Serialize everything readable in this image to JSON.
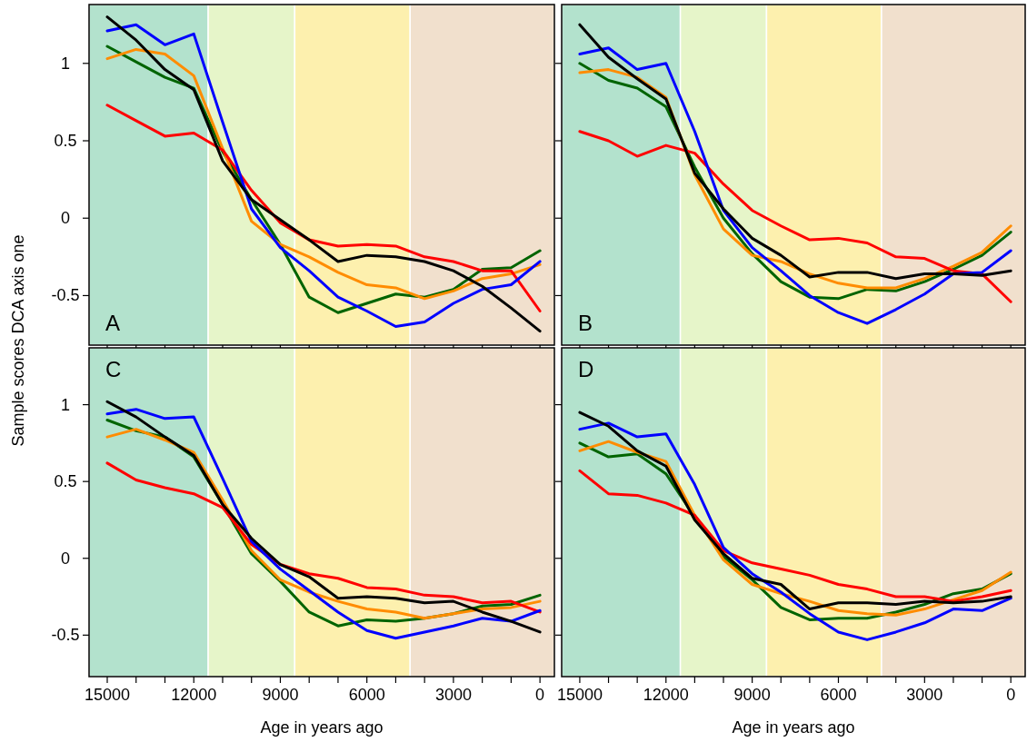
{
  "chart_data": [
    {
      "type": "line",
      "title": "A",
      "ylabel": "Sample scores DCA axis one",
      "tick_labels": "y",
      "x": [
        15000,
        14000,
        13000,
        12000,
        11000,
        10000,
        9000,
        8000,
        7000,
        6000,
        5000,
        4000,
        3000,
        2000,
        1000,
        0
      ],
      "xlim": [
        15630,
        -500
      ],
      "ylim": [
        -0.82,
        1.38
      ],
      "xticks": [
        15000,
        {
          "value": 14000,
          "label": null
        },
        {
          "value": 13000,
          "label": null
        },
        12000,
        {
          "value": 11000,
          "label": null
        },
        {
          "value": 10000,
          "label": null
        },
        9000,
        {
          "value": 8000,
          "label": null
        },
        {
          "value": 7000,
          "label": null
        },
        6000,
        {
          "value": 5000,
          "label": null
        },
        {
          "value": 4000,
          "label": null
        },
        3000,
        {
          "value": 2000,
          "label": null
        },
        {
          "value": 1000,
          "label": null
        },
        0
      ],
      "yticks": [
        -0.5,
        0,
        0.5,
        1
      ],
      "bands": [
        {
          "axis": "x",
          "from": 15630,
          "to": 11500,
          "color": "#b3e2cd"
        },
        {
          "axis": "x",
          "from": 11500,
          "to": 8500,
          "color": "#e6f5c9"
        },
        {
          "axis": "x",
          "from": 8500,
          "to": 4500,
          "color": "#fdf0ae"
        },
        {
          "axis": "x",
          "from": 4500,
          "to": -500,
          "color": "#f1e0cd"
        }
      ],
      "series": [
        {
          "color": "#006400",
          "values": [
            1.11,
            1.01,
            0.91,
            0.84,
            0.43,
            0.12,
            -0.17,
            -0.51,
            -0.61,
            -0.55,
            -0.49,
            -0.51,
            -0.46,
            -0.33,
            -0.32,
            -0.21
          ]
        },
        {
          "color": "#ff8c00",
          "values": [
            1.03,
            1.09,
            1.06,
            0.92,
            0.45,
            -0.02,
            -0.17,
            -0.25,
            -0.35,
            -0.43,
            -0.45,
            -0.52,
            -0.47,
            -0.39,
            -0.36,
            -0.3
          ]
        },
        {
          "color": "#ff0000",
          "values": [
            0.73,
            0.63,
            0.53,
            0.55,
            0.44,
            0.18,
            -0.03,
            -0.14,
            -0.18,
            -0.17,
            -0.18,
            -0.25,
            -0.28,
            -0.34,
            -0.34,
            -0.6
          ]
        },
        {
          "color": "#0000ff",
          "values": [
            1.21,
            1.25,
            1.12,
            1.19,
            0.62,
            0.06,
            -0.19,
            -0.34,
            -0.51,
            -0.6,
            -0.7,
            -0.67,
            -0.55,
            -0.46,
            -0.43,
            -0.28
          ]
        },
        {
          "color": "#000000",
          "values": [
            1.3,
            1.15,
            0.96,
            0.83,
            0.37,
            0.12,
            -0.01,
            -0.14,
            -0.28,
            -0.24,
            -0.25,
            -0.28,
            -0.34,
            -0.44,
            -0.58,
            -0.73
          ]
        }
      ]
    },
    {
      "type": "line",
      "title": "B",
      "tick_labels": false,
      "x": [
        15000,
        14000,
        13000,
        12000,
        11000,
        10000,
        9000,
        8000,
        7000,
        6000,
        5000,
        4000,
        3000,
        2000,
        1000,
        0
      ],
      "xlim": [
        15630,
        -500
      ],
      "ylim": [
        -0.82,
        1.38
      ],
      "xticks": [
        15000,
        {
          "value": 14000,
          "label": null
        },
        {
          "value": 13000,
          "label": null
        },
        12000,
        {
          "value": 11000,
          "label": null
        },
        {
          "value": 10000,
          "label": null
        },
        9000,
        {
          "value": 8000,
          "label": null
        },
        {
          "value": 7000,
          "label": null
        },
        6000,
        {
          "value": 5000,
          "label": null
        },
        {
          "value": 4000,
          "label": null
        },
        3000,
        {
          "value": 2000,
          "label": null
        },
        {
          "value": 1000,
          "label": null
        },
        0
      ],
      "yticks": [
        -0.5,
        0,
        0.5,
        1
      ],
      "bands": [
        {
          "axis": "x",
          "from": 15630,
          "to": 11500,
          "color": "#b3e2cd"
        },
        {
          "axis": "x",
          "from": 11500,
          "to": 8500,
          "color": "#e6f5c9"
        },
        {
          "axis": "x",
          "from": 8500,
          "to": 4500,
          "color": "#fdf0ae"
        },
        {
          "axis": "x",
          "from": 4500,
          "to": -500,
          "color": "#f1e0cd"
        }
      ],
      "series": [
        {
          "color": "#006400",
          "values": [
            1.0,
            0.89,
            0.84,
            0.72,
            0.33,
            0.0,
            -0.23,
            -0.41,
            -0.51,
            -0.52,
            -0.46,
            -0.47,
            -0.41,
            -0.33,
            -0.24,
            -0.09
          ]
        },
        {
          "color": "#ff8c00",
          "values": [
            0.94,
            0.96,
            0.91,
            0.78,
            0.28,
            -0.07,
            -0.24,
            -0.28,
            -0.36,
            -0.42,
            -0.45,
            -0.45,
            -0.39,
            -0.31,
            -0.22,
            -0.05
          ]
        },
        {
          "color": "#ff0000",
          "values": [
            0.56,
            0.5,
            0.4,
            0.47,
            0.42,
            0.22,
            0.05,
            -0.05,
            -0.14,
            -0.13,
            -0.16,
            -0.25,
            -0.26,
            -0.34,
            -0.36,
            -0.54
          ]
        },
        {
          "color": "#0000ff",
          "values": [
            1.06,
            1.1,
            0.96,
            1.0,
            0.56,
            0.05,
            -0.19,
            -0.34,
            -0.5,
            -0.61,
            -0.68,
            -0.59,
            -0.49,
            -0.36,
            -0.35,
            -0.21
          ]
        },
        {
          "color": "#000000",
          "values": [
            1.25,
            1.04,
            0.9,
            0.77,
            0.29,
            0.06,
            -0.13,
            -0.24,
            -0.38,
            -0.35,
            -0.35,
            -0.39,
            -0.36,
            -0.36,
            -0.37,
            -0.34
          ]
        }
      ]
    },
    {
      "type": "line",
      "title": "C",
      "xlabel": "Age in years ago",
      "x": [
        15000,
        14000,
        13000,
        12000,
        11000,
        10000,
        9000,
        8000,
        7000,
        6000,
        5000,
        4000,
        3000,
        2000,
        1000,
        0
      ],
      "xlim": [
        15630,
        -500
      ],
      "ylim": [
        -0.77,
        1.37
      ],
      "xticks": [
        15000,
        {
          "value": 14000,
          "label": null
        },
        {
          "value": 13000,
          "label": null
        },
        12000,
        {
          "value": 11000,
          "label": null
        },
        {
          "value": 10000,
          "label": null
        },
        9000,
        {
          "value": 8000,
          "label": null
        },
        {
          "value": 7000,
          "label": null
        },
        6000,
        {
          "value": 5000,
          "label": null
        },
        {
          "value": 4000,
          "label": null
        },
        3000,
        {
          "value": 2000,
          "label": null
        },
        {
          "value": 1000,
          "label": null
        },
        0
      ],
      "yticks": [
        -0.5,
        0,
        0.5,
        1
      ],
      "bands": [
        {
          "axis": "x",
          "from": 15630,
          "to": 11500,
          "color": "#b3e2cd"
        },
        {
          "axis": "x",
          "from": 11500,
          "to": 8500,
          "color": "#e6f5c9"
        },
        {
          "axis": "x",
          "from": 8500,
          "to": 4500,
          "color": "#fdf0ae"
        },
        {
          "axis": "x",
          "from": 4500,
          "to": -500,
          "color": "#f1e0cd"
        }
      ],
      "series": [
        {
          "color": "#006400",
          "values": [
            0.9,
            0.83,
            0.79,
            0.66,
            0.35,
            0.03,
            -0.15,
            -0.35,
            -0.44,
            -0.4,
            -0.41,
            -0.39,
            -0.36,
            -0.31,
            -0.3,
            -0.24
          ]
        },
        {
          "color": "#ff8c00",
          "values": [
            0.79,
            0.84,
            0.77,
            0.69,
            0.38,
            0.05,
            -0.14,
            -0.22,
            -0.28,
            -0.33,
            -0.35,
            -0.39,
            -0.36,
            -0.33,
            -0.32,
            -0.28
          ]
        },
        {
          "color": "#ff0000",
          "values": [
            0.62,
            0.51,
            0.46,
            0.42,
            0.33,
            0.09,
            -0.04,
            -0.1,
            -0.13,
            -0.19,
            -0.2,
            -0.24,
            -0.25,
            -0.29,
            -0.28,
            -0.35
          ]
        },
        {
          "color": "#0000ff",
          "values": [
            0.94,
            0.97,
            0.91,
            0.92,
            0.52,
            0.11,
            -0.07,
            -0.21,
            -0.35,
            -0.47,
            -0.52,
            -0.48,
            -0.44,
            -0.39,
            -0.41,
            -0.34
          ]
        },
        {
          "color": "#000000",
          "values": [
            1.02,
            0.92,
            0.79,
            0.67,
            0.35,
            0.13,
            -0.04,
            -0.12,
            -0.26,
            -0.25,
            -0.26,
            -0.29,
            -0.28,
            -0.35,
            -0.41,
            -0.48
          ]
        }
      ]
    },
    {
      "type": "line",
      "title": "D",
      "xlabel": "Age in years ago",
      "tick_labels": "x",
      "x": [
        15000,
        14000,
        13000,
        12000,
        11000,
        10000,
        9000,
        8000,
        7000,
        6000,
        5000,
        4000,
        3000,
        2000,
        1000,
        0
      ],
      "xlim": [
        15630,
        -500
      ],
      "ylim": [
        -0.77,
        1.37
      ],
      "xticks": [
        15000,
        {
          "value": 14000,
          "label": null
        },
        {
          "value": 13000,
          "label": null
        },
        12000,
        {
          "value": 11000,
          "label": null
        },
        {
          "value": 10000,
          "label": null
        },
        9000,
        {
          "value": 8000,
          "label": null
        },
        {
          "value": 7000,
          "label": null
        },
        6000,
        {
          "value": 5000,
          "label": null
        },
        {
          "value": 4000,
          "label": null
        },
        3000,
        {
          "value": 2000,
          "label": null
        },
        {
          "value": 1000,
          "label": null
        },
        0
      ],
      "yticks": [
        -0.5,
        0,
        0.5,
        1
      ],
      "bands": [
        {
          "axis": "x",
          "from": 15630,
          "to": 11500,
          "color": "#b3e2cd"
        },
        {
          "axis": "x",
          "from": 11500,
          "to": 8500,
          "color": "#e6f5c9"
        },
        {
          "axis": "x",
          "from": 8500,
          "to": 4500,
          "color": "#fdf0ae"
        },
        {
          "axis": "x",
          "from": 4500,
          "to": -500,
          "color": "#f1e0cd"
        }
      ],
      "series": [
        {
          "color": "#006400",
          "values": [
            0.75,
            0.66,
            0.68,
            0.55,
            0.27,
            0.01,
            -0.14,
            -0.32,
            -0.4,
            -0.39,
            -0.39,
            -0.35,
            -0.3,
            -0.23,
            -0.2,
            -0.1
          ]
        },
        {
          "color": "#ff8c00",
          "values": [
            0.7,
            0.76,
            0.69,
            0.63,
            0.28,
            -0.01,
            -0.17,
            -0.23,
            -0.28,
            -0.34,
            -0.36,
            -0.37,
            -0.33,
            -0.27,
            -0.21,
            -0.09
          ]
        },
        {
          "color": "#ff0000",
          "values": [
            0.57,
            0.42,
            0.41,
            0.36,
            0.28,
            0.05,
            -0.03,
            -0.07,
            -0.11,
            -0.17,
            -0.2,
            -0.25,
            -0.25,
            -0.28,
            -0.25,
            -0.21
          ]
        },
        {
          "color": "#0000ff",
          "values": [
            0.84,
            0.88,
            0.79,
            0.81,
            0.48,
            0.07,
            -0.1,
            -0.22,
            -0.36,
            -0.48,
            -0.53,
            -0.48,
            -0.42,
            -0.33,
            -0.34,
            -0.26
          ]
        },
        {
          "color": "#000000",
          "values": [
            0.95,
            0.86,
            0.7,
            0.6,
            0.25,
            0.03,
            -0.13,
            -0.17,
            -0.33,
            -0.29,
            -0.29,
            -0.3,
            -0.28,
            -0.29,
            -0.28,
            -0.25
          ]
        }
      ]
    }
  ]
}
